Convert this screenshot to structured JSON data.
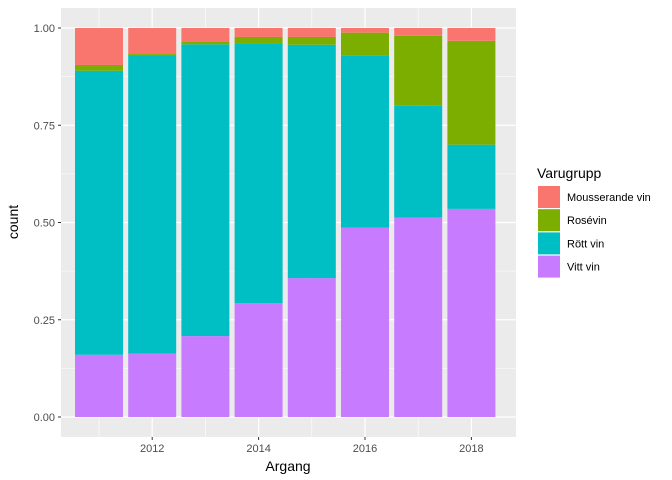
{
  "chart_data": {
    "type": "bar",
    "stacked": true,
    "normalized": true,
    "categories": [
      2011,
      2012,
      2013,
      2014,
      2015,
      2016,
      2017,
      2018
    ],
    "xlabel": "Argang",
    "ylabel": "count",
    "x_ticks": [
      "2012",
      "2014",
      "2016",
      "2018"
    ],
    "y_ticks": [
      "0.00",
      "0.25",
      "0.50",
      "0.75",
      "1.00"
    ],
    "ylim": [
      0,
      1
    ],
    "grid": true,
    "legend": {
      "title": "Varugrupp",
      "position": "right"
    },
    "series": [
      {
        "name": "Vitt vin",
        "color": "#C77CFF",
        "values": [
          0.16,
          0.163,
          0.208,
          0.293,
          0.357,
          0.487,
          0.513,
          0.535
        ]
      },
      {
        "name": "Rött vin",
        "color": "#00BFC4",
        "values": [
          0.73,
          0.765,
          0.75,
          0.667,
          0.6,
          0.443,
          0.287,
          0.165
        ]
      },
      {
        "name": "Rosévin",
        "color": "#7CAE00",
        "values": [
          0.015,
          0.005,
          0.007,
          0.017,
          0.02,
          0.058,
          0.18,
          0.267
        ]
      },
      {
        "name": "Mousserande vin",
        "color": "#F8766D",
        "values": [
          0.095,
          0.067,
          0.035,
          0.023,
          0.023,
          0.012,
          0.02,
          0.033
        ]
      }
    ],
    "legend_order": [
      "Mousserande vin",
      "Rosévin",
      "Rött vin",
      "Vitt vin"
    ]
  }
}
